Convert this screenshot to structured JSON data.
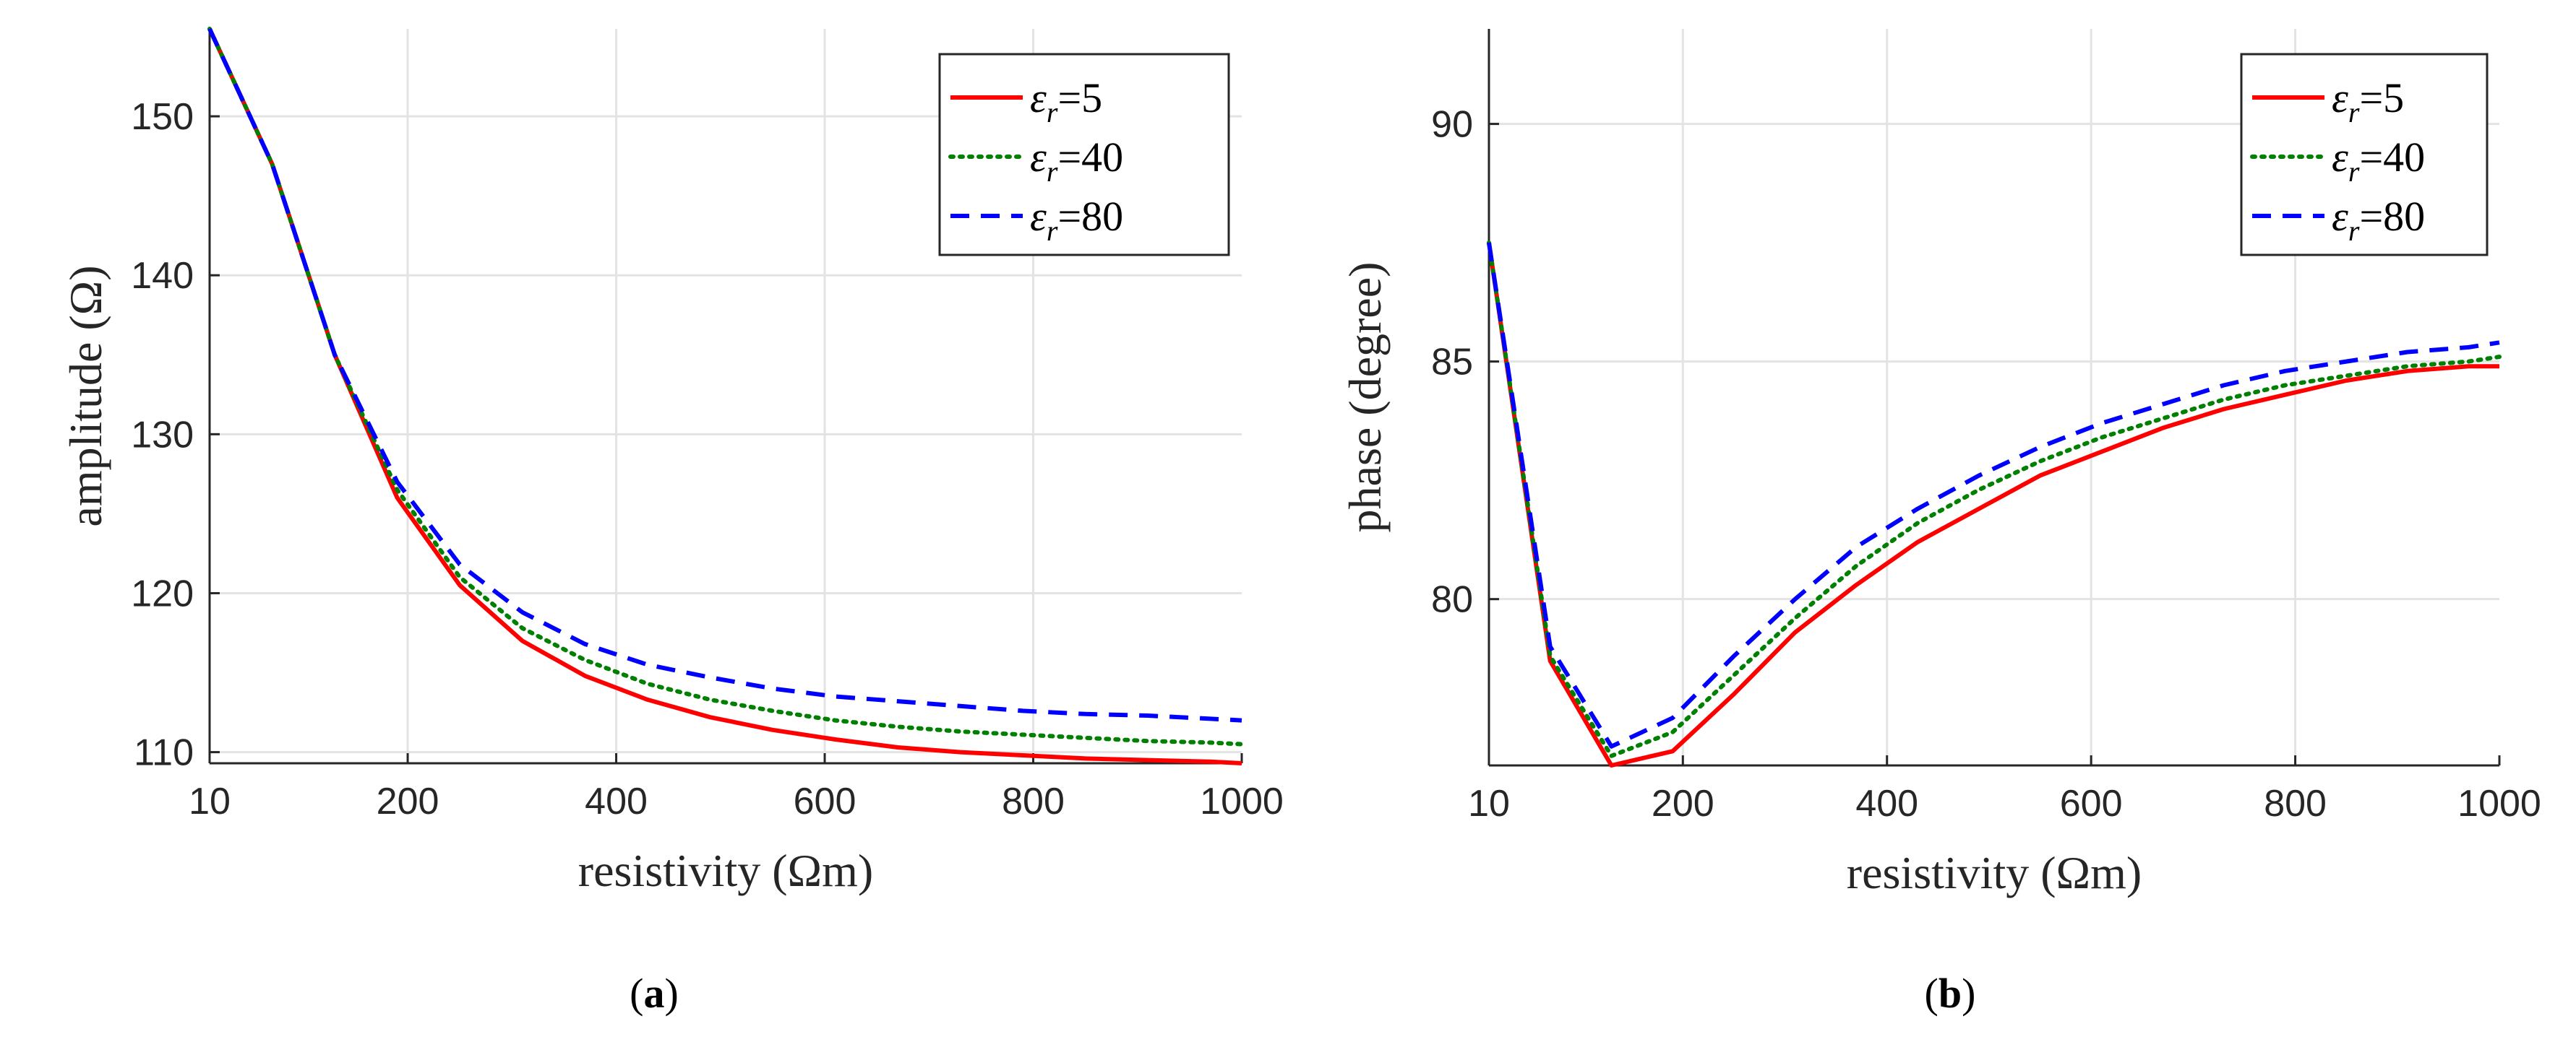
{
  "chart_data": [
    {
      "type": "line",
      "panel": "a",
      "caption": "a",
      "xlabel": "resistivity (Ωm)",
      "ylabel": "amplitude (Ω)",
      "xlim": [
        10,
        1000
      ],
      "ylim": [
        109.3,
        155.5
      ],
      "xticks": [
        10,
        200,
        400,
        600,
        800,
        1000
      ],
      "xtick_labels": [
        "10",
        "200",
        "400",
        "600",
        "800",
        "1000"
      ],
      "yticks": [
        110,
        120,
        130,
        140,
        150
      ],
      "ytick_labels": [
        "110",
        "120",
        "130",
        "140",
        "150"
      ],
      "grid": true,
      "legend_position": "top-right",
      "x": [
        10,
        70,
        130,
        190,
        250,
        310,
        370,
        430,
        490,
        550,
        610,
        670,
        730,
        790,
        850,
        910,
        970,
        1000
      ],
      "series": [
        {
          "name": "εr=5",
          "symbol": "ε",
          "subscript": "r",
          "value_label": "=5",
          "color": "#ff0000",
          "dash": "solid",
          "values": [
            155.5,
            147.0,
            135.0,
            126.0,
            120.5,
            117.0,
            114.8,
            113.3,
            112.2,
            111.4,
            110.8,
            110.3,
            110.0,
            109.8,
            109.6,
            109.5,
            109.4,
            109.3
          ]
        },
        {
          "name": "εr=40",
          "symbol": "ε",
          "subscript": "r",
          "value_label": "=40",
          "color": "#008000",
          "dash": "dotted",
          "values": [
            155.5,
            147.0,
            135.0,
            126.5,
            121.0,
            117.8,
            115.8,
            114.3,
            113.3,
            112.6,
            112.0,
            111.6,
            111.3,
            111.1,
            110.9,
            110.7,
            110.6,
            110.5
          ]
        },
        {
          "name": "εr=80",
          "symbol": "ε",
          "subscript": "r",
          "value_label": "=80",
          "color": "#0000ff",
          "dash": "dashed",
          "values": [
            155.5,
            147.0,
            135.0,
            127.0,
            121.8,
            118.8,
            116.8,
            115.5,
            114.7,
            114.0,
            113.5,
            113.2,
            112.9,
            112.6,
            112.4,
            112.3,
            112.1,
            112.0
          ]
        }
      ]
    },
    {
      "type": "line",
      "panel": "b",
      "caption": "b",
      "xlabel": "resistivity (Ωm)",
      "ylabel": "phase (degree)",
      "xlim": [
        10,
        1000
      ],
      "ylim": [
        76.5,
        92
      ],
      "xticks": [
        10,
        200,
        400,
        600,
        800,
        1000
      ],
      "xtick_labels": [
        "10",
        "200",
        "400",
        "600",
        "800",
        "1000"
      ],
      "yticks": [
        80,
        85,
        90
      ],
      "ytick_labels": [
        "80",
        "85",
        "90"
      ],
      "grid": true,
      "legend_position": "top-right",
      "x": [
        10,
        70,
        130,
        190,
        250,
        310,
        370,
        430,
        490,
        550,
        610,
        670,
        730,
        790,
        850,
        910,
        970,
        1000
      ],
      "series": [
        {
          "name": "εr=5",
          "symbol": "ε",
          "subscript": "r",
          "value_label": "=5",
          "color": "#ff0000",
          "dash": "solid",
          "values": [
            87.5,
            78.7,
            76.5,
            76.8,
            78.0,
            79.3,
            80.3,
            81.2,
            81.9,
            82.6,
            83.1,
            83.6,
            84.0,
            84.3,
            84.6,
            84.8,
            84.9,
            84.9
          ]
        },
        {
          "name": "εr=40",
          "symbol": "ε",
          "subscript": "r",
          "value_label": "=40",
          "color": "#008000",
          "dash": "dotted",
          "values": [
            87.5,
            78.8,
            76.7,
            77.2,
            78.4,
            79.6,
            80.7,
            81.6,
            82.3,
            82.9,
            83.4,
            83.8,
            84.2,
            84.5,
            84.7,
            84.9,
            85.0,
            85.1
          ]
        },
        {
          "name": "εr=80",
          "symbol": "ε",
          "subscript": "r",
          "value_label": "=80",
          "color": "#0000ff",
          "dash": "dashed",
          "values": [
            87.5,
            79.0,
            76.9,
            77.5,
            78.8,
            80.0,
            81.1,
            81.9,
            82.6,
            83.2,
            83.7,
            84.1,
            84.5,
            84.8,
            85.0,
            85.2,
            85.3,
            85.4
          ]
        }
      ]
    }
  ]
}
